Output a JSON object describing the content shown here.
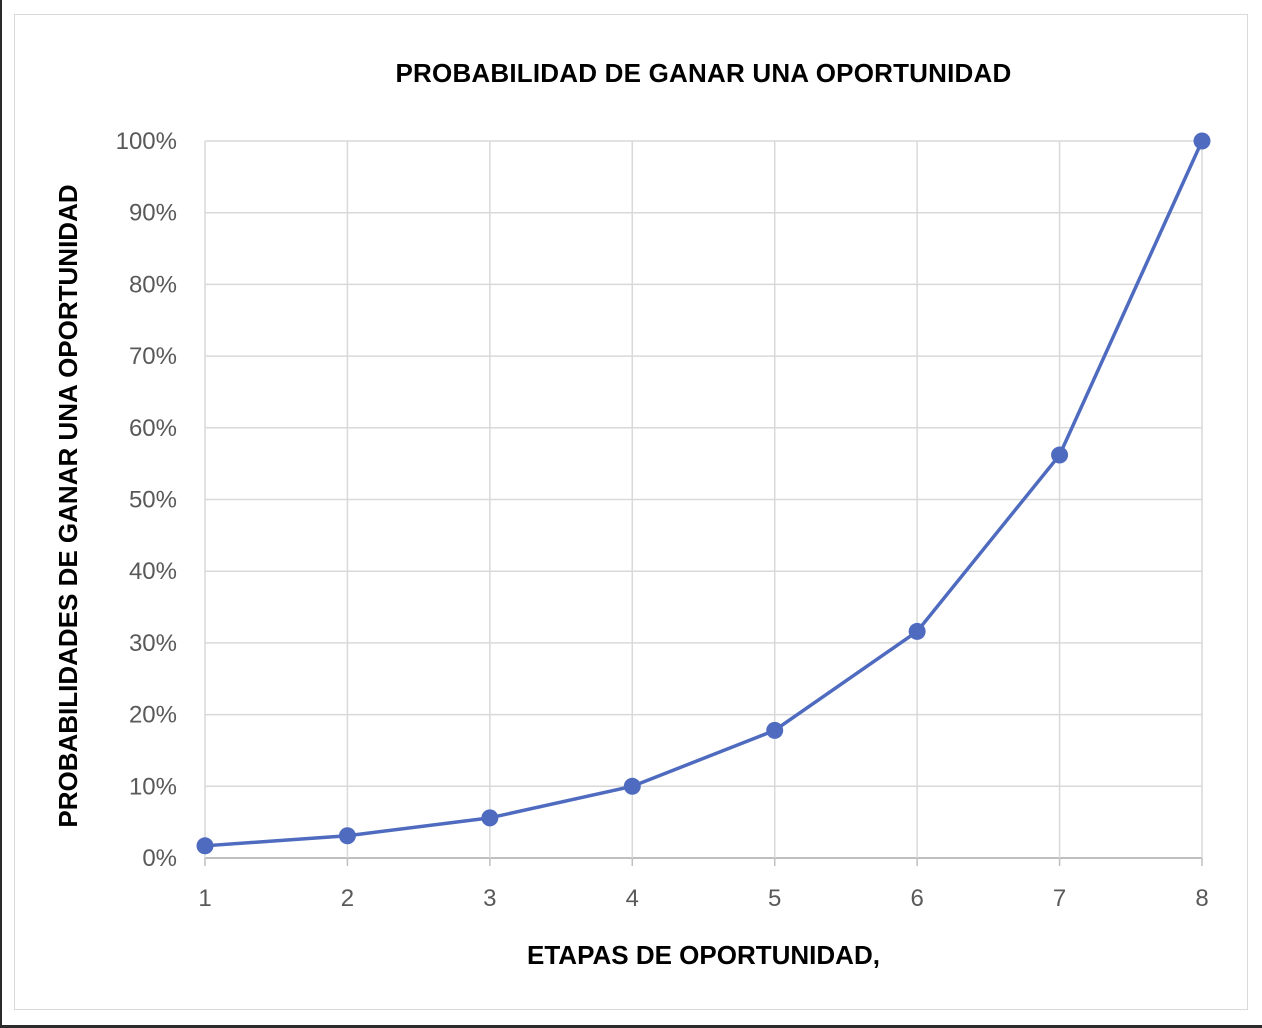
{
  "chart_data": {
    "type": "line",
    "title": "PROBABILIDAD DE GANAR UNA OPORTUNIDAD",
    "xlabel": "ETAPAS DE OPORTUNIDAD,",
    "ylabel": "PROBABILIDADES DE GANAR UNA OPORTUNIDAD",
    "x": [
      1,
      2,
      3,
      4,
      5,
      6,
      7,
      8
    ],
    "x_tick_labels": [
      "1",
      "2",
      "3",
      "4",
      "5",
      "6",
      "7",
      "8"
    ],
    "y_tick_labels": [
      "0%",
      "10%",
      "20%",
      "30%",
      "40%",
      "50%",
      "60%",
      "70%",
      "80%",
      "90%",
      "100%"
    ],
    "ylim": [
      0,
      100
    ],
    "xlim": [
      1,
      8
    ],
    "grid": true,
    "legend": "none",
    "series": [
      {
        "values": [
          1.7,
          3.1,
          5.6,
          10.0,
          17.8,
          31.6,
          56.2,
          100.0
        ],
        "color": "#4f6bbf"
      }
    ]
  }
}
